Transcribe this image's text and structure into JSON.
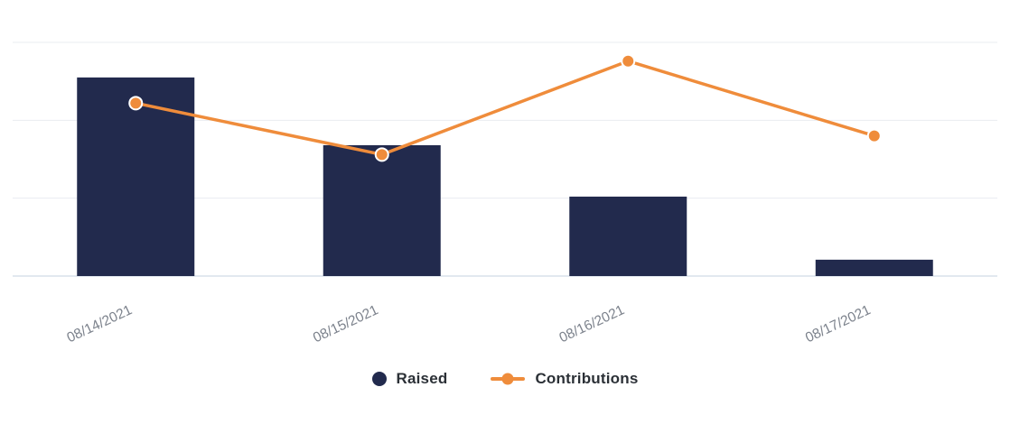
{
  "chart_data": {
    "type": "combo",
    "title": "",
    "xlabel": "",
    "ylabel": "",
    "categories": [
      "08/14/2021",
      "08/15/2021",
      "08/16/2021",
      "08/17/2021"
    ],
    "series": [
      {
        "name": "Raised",
        "type": "bar",
        "color": "#222a4d",
        "values": [
          85,
          56,
          34,
          7
        ]
      },
      {
        "name": "Contributions",
        "type": "line",
        "color": "#ef8c3b",
        "values": [
          74,
          52,
          92,
          60
        ]
      }
    ],
    "ylim": [
      0,
      100
    ],
    "grid": true,
    "gridline_count": 4,
    "y_axis_labels_visible": false,
    "x_label_rotation_deg": -25,
    "legend_position": "bottom"
  },
  "colors": {
    "background": "#ffffff",
    "grid": "#e9ecf1",
    "axis_line": "#d9e1ea",
    "tick_label": "#7c828c",
    "legend_text": "#2b3036",
    "point_ring": "#ffffff"
  }
}
